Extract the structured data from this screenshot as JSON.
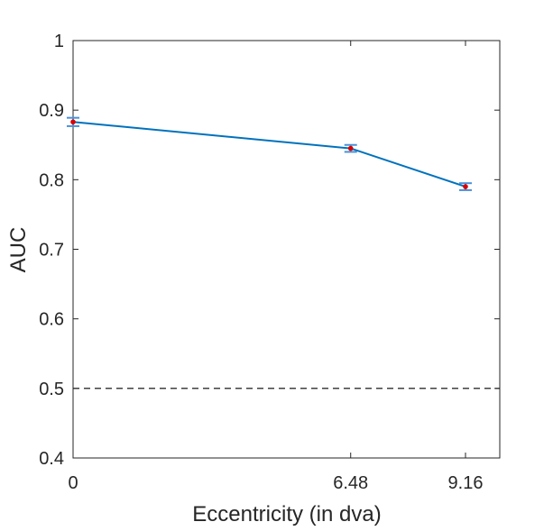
{
  "chart_data": {
    "type": "line",
    "title": "",
    "xlabel": "Eccentricity (in dva)",
    "ylabel": "AUC",
    "xlim": [
      0,
      9.16
    ],
    "ylim": [
      0.4,
      1
    ],
    "xticks": [
      0,
      6.48,
      9.16
    ],
    "xtick_labels": [
      "0",
      "6.48",
      "9.16"
    ],
    "yticks": [
      0.4,
      0.5,
      0.6,
      0.7,
      0.8,
      0.9,
      1
    ],
    "ytick_labels": [
      "0.4",
      "0.5",
      "0.6",
      "0.7",
      "0.8",
      "0.9",
      "1"
    ],
    "grid": false,
    "box": true,
    "series": [
      {
        "x": [
          0,
          6.48,
          9.16
        ],
        "values": [
          0.883,
          0.845,
          0.79
        ],
        "error": [
          0.006,
          0.005,
          0.005
        ],
        "line_color": "#0072BD",
        "marker_color": "#D90000",
        "errorbar_color": "#4A90D9"
      }
    ],
    "reference_lines": [
      {
        "y": 0.5,
        "style": "dashed",
        "color": "#000000"
      }
    ]
  }
}
